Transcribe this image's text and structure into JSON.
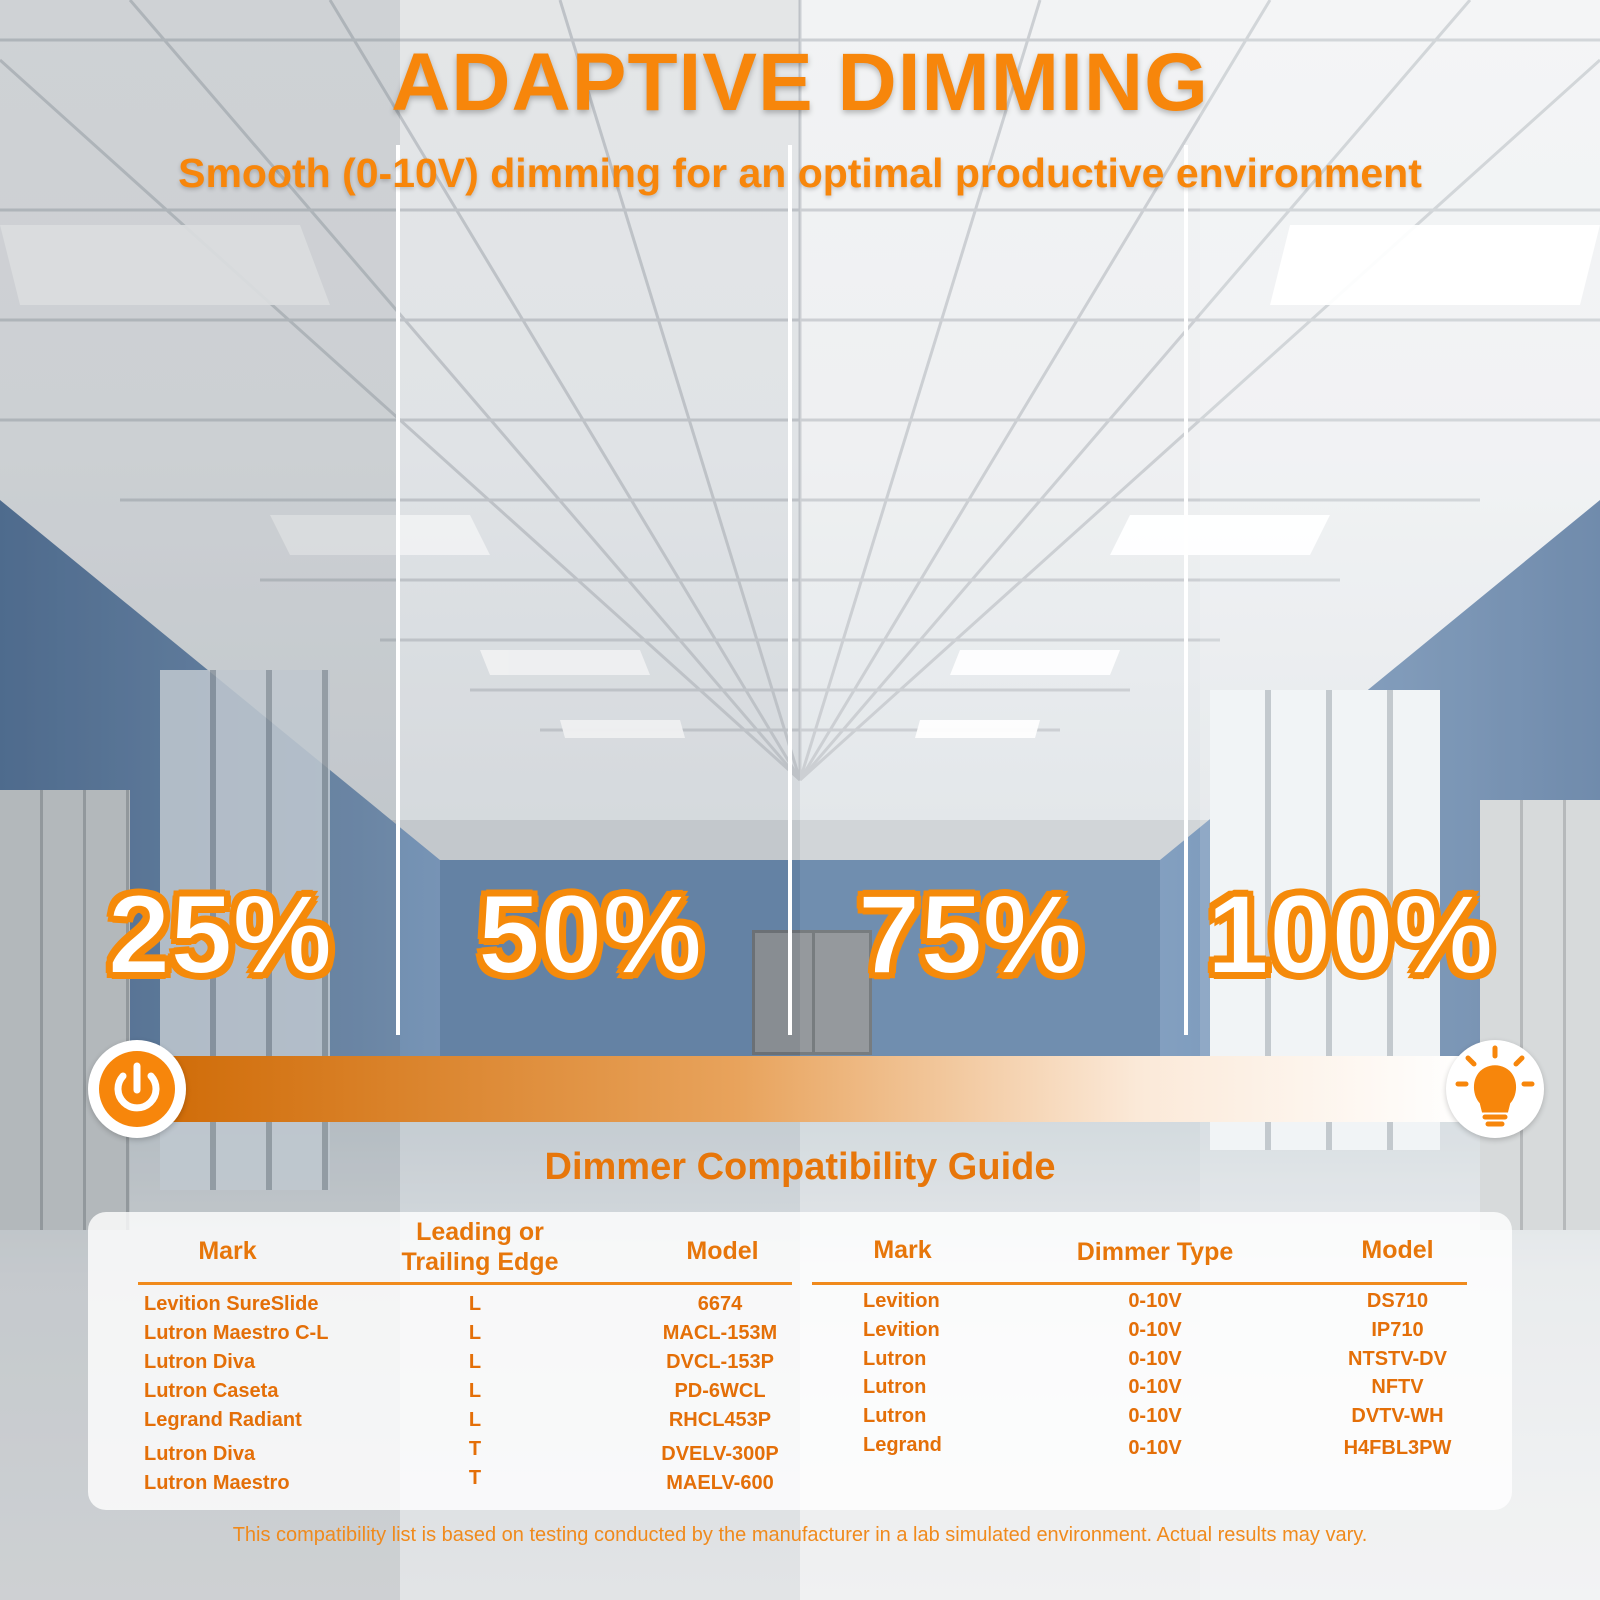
{
  "header": {
    "title": "ADAPTIVE DIMMING",
    "subtitle": "Smooth (0-10V) dimming for an optimal productive environment"
  },
  "dimming_levels": [
    "25%",
    "50%",
    "75%",
    "100%"
  ],
  "slider": {
    "left_icon": "power-icon",
    "right_icon": "light-bulb-icon",
    "accent_color": "#f7860b"
  },
  "guide": {
    "title": "Dimmer Compatibility Guide",
    "left_table": {
      "headers": [
        "Mark",
        "Leading or\nTrailing Edge",
        "Model"
      ],
      "rows": [
        [
          "Levition SureSlide",
          "L",
          "6674"
        ],
        [
          "Lutron Maestro C-L",
          "L",
          "MACL-153M"
        ],
        [
          "Lutron Diva",
          "L",
          "DVCL-153P"
        ],
        [
          "Lutron Caseta",
          "L",
          "PD-6WCL"
        ],
        [
          "Legrand Radiant",
          "L",
          "RHCL453P"
        ],
        [
          "Lutron Diva",
          "T",
          "DVELV-300P"
        ],
        [
          "Lutron Maestro",
          "T",
          "MAELV-600"
        ]
      ]
    },
    "right_table": {
      "headers": [
        "Mark",
        "Dimmer Type",
        "Model"
      ],
      "rows": [
        [
          "Levition",
          "0-10V",
          "DS710"
        ],
        [
          "Levition",
          "0-10V",
          "IP710"
        ],
        [
          "Lutron",
          "0-10V",
          "NTSTV-DV"
        ],
        [
          "Lutron",
          "0-10V",
          "NFTV"
        ],
        [
          "Lutron",
          "0-10V",
          "DVTV-WH"
        ],
        [
          "Legrand",
          "0-10V",
          "H4FBL3PW"
        ]
      ]
    }
  },
  "footnote": "This compatibility list is based on testing conducted by the manufacturer in a lab simulated environment. Actual results may vary."
}
